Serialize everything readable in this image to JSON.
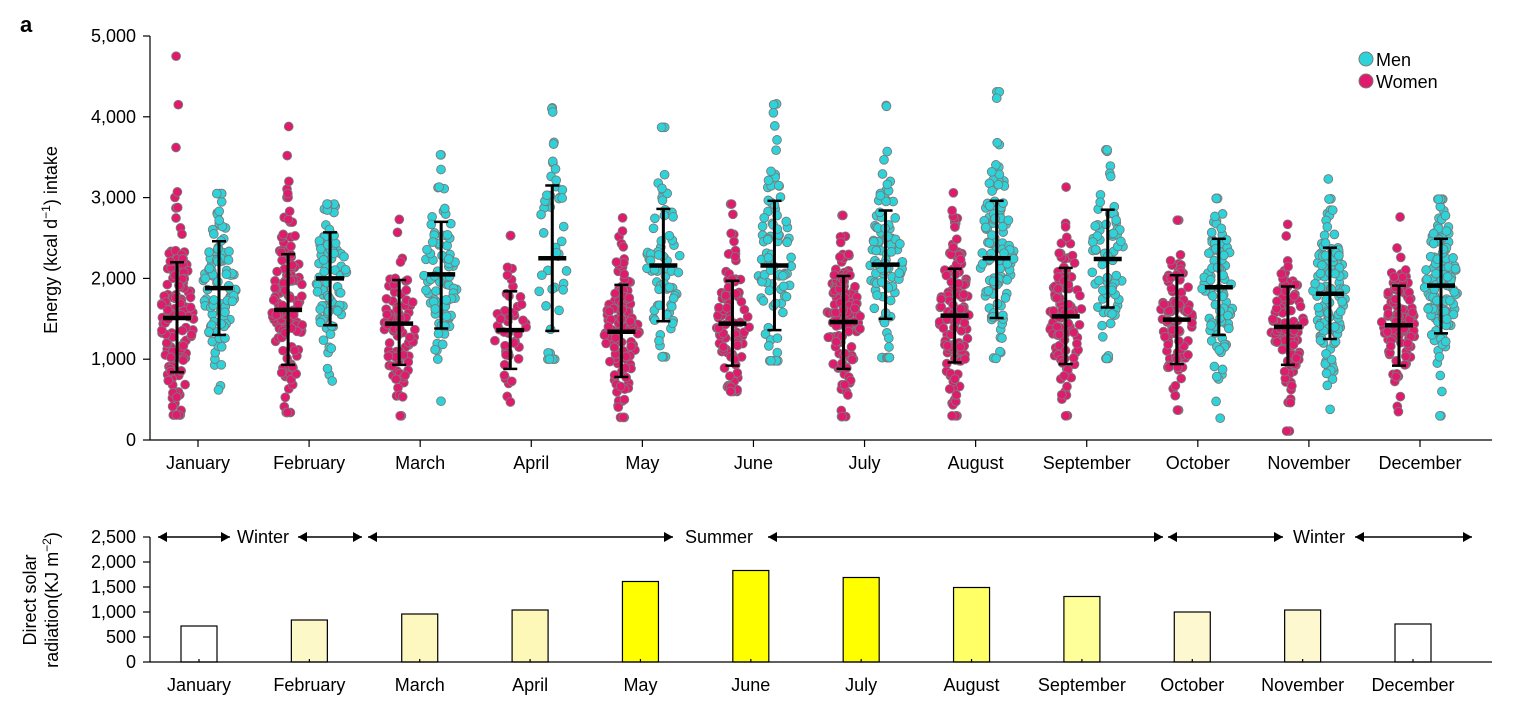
{
  "panel_label": "a",
  "chart_data": [
    {
      "type": "scatter",
      "xlabel": "",
      "ylabel": "Energy (kcal d",
      "ylabel_sup": "−1",
      "ylabel_tail": ") intake",
      "ylim": [
        0,
        5000
      ],
      "yticks": [
        "0",
        "1,000",
        "2,000",
        "3,000",
        "4,000",
        "5,000"
      ],
      "ytick_values": [
        0,
        1000,
        2000,
        3000,
        4000,
        5000
      ],
      "categories": [
        "January",
        "February",
        "March",
        "April",
        "May",
        "June",
        "July",
        "August",
        "September",
        "October",
        "November",
        "December"
      ],
      "legend": {
        "position": "top-right",
        "entries": [
          "Men",
          "Women"
        ]
      },
      "colors": {
        "men": "#2ed3d9",
        "women": "#e01a6c",
        "marker_edge": "#7a7a7a",
        "errorbar": "#000000"
      },
      "series": [
        {
          "name": "Women",
          "color": "#e01a6c",
          "mean": [
            1510,
            1610,
            1440,
            1360,
            1340,
            1440,
            1460,
            1540,
            1530,
            1490,
            1400,
            1420
          ],
          "sd_low": [
            840,
            930,
            930,
            880,
            780,
            920,
            880,
            960,
            940,
            940,
            930,
            920
          ],
          "sd_high": [
            2200,
            2300,
            1980,
            1840,
            1920,
            1970,
            2030,
            2120,
            2130,
            2040,
            1900,
            1910
          ],
          "min": [
            310,
            340,
            300,
            470,
            280,
            600,
            290,
            300,
            300,
            370,
            110,
            350
          ],
          "max": [
            4750,
            3880,
            2730,
            2530,
            2750,
            2920,
            2780,
            3060,
            3130,
            2720,
            2670,
            2760
          ],
          "outliers": [
            [
              0,
              4150
            ],
            [
              0,
              3620
            ],
            [
              0,
              3070
            ],
            [
              1,
              3520
            ],
            [
              1,
              3200
            ],
            [
              1,
              3050
            ]
          ],
          "n_points": [
            130,
            130,
            80,
            45,
            110,
            90,
            120,
            120,
            110,
            90,
            90,
            100
          ]
        },
        {
          "name": "Men",
          "color": "#2ed3d9",
          "mean": [
            1880,
            2000,
            2050,
            2250,
            2160,
            2160,
            2170,
            2250,
            2240,
            1890,
            1810,
            1910
          ],
          "sd_low": [
            1300,
            1420,
            1380,
            1350,
            1470,
            1360,
            1500,
            1510,
            1640,
            1300,
            1250,
            1320
          ],
          "sd_high": [
            2460,
            2570,
            2700,
            3150,
            2860,
            2960,
            2840,
            2960,
            2850,
            2490,
            2380,
            2490
          ],
          "min": [
            620,
            730,
            480,
            1000,
            1030,
            980,
            1020,
            1010,
            1010,
            270,
            380,
            300
          ],
          "max": [
            3050,
            2920,
            3530,
            4110,
            3870,
            4160,
            4140,
            4310,
            3590,
            2990,
            3230,
            2980
          ],
          "outliers": [
            [
              3,
              4100
            ],
            [
              3,
              4060
            ],
            [
              5,
              4150
            ],
            [
              5,
              4050
            ],
            [
              6,
              4130
            ],
            [
              7,
              4310
            ],
            [
              7,
              4230
            ],
            [
              4,
              3870
            ]
          ],
          "n_points": [
            100,
            80,
            80,
            45,
            70,
            80,
            90,
            110,
            70,
            90,
            120,
            120
          ]
        }
      ]
    },
    {
      "type": "bar",
      "ylabel_line1": "Direct solar",
      "ylabel_line2": "radiation(KJ m",
      "ylabel_sup": "−2",
      "ylabel_tail": ")",
      "ylim": [
        0,
        2500
      ],
      "yticks": [
        "0",
        "500",
        "1,000",
        "1,500",
        "2,000",
        "2,500"
      ],
      "ytick_values": [
        0,
        500,
        1000,
        1500,
        2000,
        2500
      ],
      "categories": [
        "January",
        "February",
        "March",
        "April",
        "May",
        "June",
        "July",
        "August",
        "September",
        "October",
        "November",
        "December"
      ],
      "values": [
        720,
        840,
        960,
        1040,
        1610,
        1830,
        1690,
        1490,
        1310,
        1000,
        1040,
        760
      ],
      "bar_colors": [
        "#ffffff",
        "#fdf8c8",
        "#fdf7c0",
        "#fdf7b8",
        "#ffff00",
        "#ffff00",
        "#ffff00",
        "#ffff66",
        "#ffff99",
        "#fdf8d0",
        "#fdf8d0",
        "#ffffff"
      ],
      "seasons": [
        {
          "label": "Winter",
          "from": "January",
          "to": "February"
        },
        {
          "label": "Summer",
          "from": "March",
          "to": "September"
        },
        {
          "label": "Winter",
          "from": "October",
          "to": "December"
        }
      ]
    }
  ]
}
